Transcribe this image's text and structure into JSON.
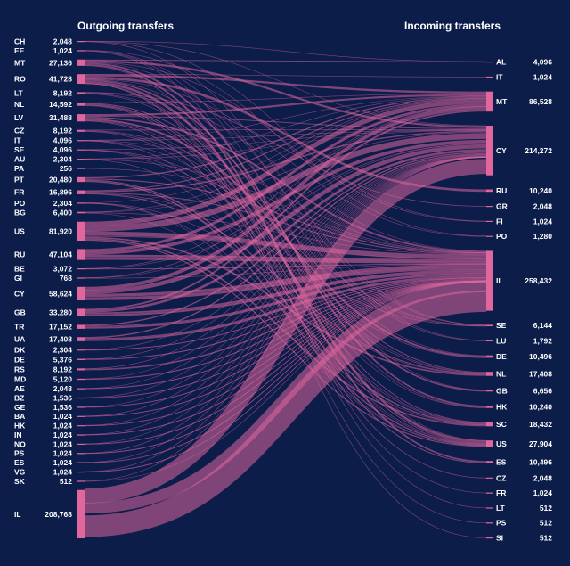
{
  "headers": {
    "outgoing": "Outgoing transfers",
    "incoming": "Incoming transfers"
  },
  "colors": {
    "background": "#0c1d4a",
    "flow": "#e0669e",
    "node": "#e0669e",
    "text": "#ffffff"
  },
  "chart_data": {
    "type": "sankey",
    "sources": [
      {
        "code": "CH",
        "value_label": "2,048",
        "value": 2048
      },
      {
        "code": "EE",
        "value_label": "1,024",
        "value": 1024
      },
      {
        "code": "MT",
        "value_label": "27,136",
        "value": 27136
      },
      {
        "code": "RO",
        "value_label": "41,728",
        "value": 41728
      },
      {
        "code": "LT",
        "value_label": "8,192",
        "value": 8192
      },
      {
        "code": "NL",
        "value_label": "14,592",
        "value": 14592
      },
      {
        "code": "LV",
        "value_label": "31,488",
        "value": 31488
      },
      {
        "code": "CZ",
        "value_label": "8,192",
        "value": 8192
      },
      {
        "code": "IT",
        "value_label": "4,096",
        "value": 4096
      },
      {
        "code": "SE",
        "value_label": "4,096",
        "value": 4096
      },
      {
        "code": "AU",
        "value_label": "2,304",
        "value": 2304
      },
      {
        "code": "PA",
        "value_label": "256",
        "value": 256
      },
      {
        "code": "PT",
        "value_label": "20,480",
        "value": 20480
      },
      {
        "code": "FR",
        "value_label": "16,896",
        "value": 16896
      },
      {
        "code": "PO",
        "value_label": "2,304",
        "value": 2304
      },
      {
        "code": "BG",
        "value_label": "6,400",
        "value": 6400
      },
      {
        "code": "US",
        "value_label": "81,920",
        "value": 81920
      },
      {
        "code": "RU",
        "value_label": "47,104",
        "value": 47104
      },
      {
        "code": "BE",
        "value_label": "3,072",
        "value": 3072
      },
      {
        "code": "GI",
        "value_label": "768",
        "value": 768
      },
      {
        "code": "CY",
        "value_label": "58,624",
        "value": 58624
      },
      {
        "code": "GB",
        "value_label": "33,280",
        "value": 33280
      },
      {
        "code": "TR",
        "value_label": "17,152",
        "value": 17152
      },
      {
        "code": "UA",
        "value_label": "17,408",
        "value": 17408
      },
      {
        "code": "DK",
        "value_label": "2,304",
        "value": 2304
      },
      {
        "code": "DE",
        "value_label": "5,376",
        "value": 5376
      },
      {
        "code": "RS",
        "value_label": "8,192",
        "value": 8192
      },
      {
        "code": "MD",
        "value_label": "5,120",
        "value": 5120
      },
      {
        "code": "AE",
        "value_label": "2,048",
        "value": 2048
      },
      {
        "code": "BZ",
        "value_label": "1,536",
        "value": 1536
      },
      {
        "code": "GE",
        "value_label": "1,536",
        "value": 1536
      },
      {
        "code": "BA",
        "value_label": "1,024",
        "value": 1024
      },
      {
        "code": "HK",
        "value_label": "1,024",
        "value": 1024
      },
      {
        "code": "IN",
        "value_label": "1,024",
        "value": 1024
      },
      {
        "code": "NO",
        "value_label": "1,024",
        "value": 1024
      },
      {
        "code": "PS",
        "value_label": "1,024",
        "value": 1024
      },
      {
        "code": "ES",
        "value_label": "1,024",
        "value": 1024
      },
      {
        "code": "VG",
        "value_label": "1,024",
        "value": 1024
      },
      {
        "code": "SK",
        "value_label": "512",
        "value": 512
      },
      {
        "code": "IL",
        "value_label": "208,768",
        "value": 208768
      }
    ],
    "targets": [
      {
        "code": "AL",
        "value_label": "4,096",
        "value": 4096
      },
      {
        "code": "IT",
        "value_label": "1,024",
        "value": 1024
      },
      {
        "code": "MT",
        "value_label": "86,528",
        "value": 86528
      },
      {
        "code": "CY",
        "value_label": "214,272",
        "value": 214272
      },
      {
        "code": "RU",
        "value_label": "10,240",
        "value": 10240
      },
      {
        "code": "GR",
        "value_label": "2,048",
        "value": 2048
      },
      {
        "code": "FI",
        "value_label": "1,024",
        "value": 1024
      },
      {
        "code": "PO",
        "value_label": "1,280",
        "value": 1280
      },
      {
        "code": "IL",
        "value_label": "258,432",
        "value": 258432
      },
      {
        "code": "SE",
        "value_label": "6,144",
        "value": 6144
      },
      {
        "code": "LU",
        "value_label": "1,792",
        "value": 1792
      },
      {
        "code": "DE",
        "value_label": "10,496",
        "value": 10496
      },
      {
        "code": "NL",
        "value_label": "17,408",
        "value": 17408
      },
      {
        "code": "GB",
        "value_label": "6,656",
        "value": 6656
      },
      {
        "code": "HK",
        "value_label": "10,240",
        "value": 10240
      },
      {
        "code": "SC",
        "value_label": "18,432",
        "value": 18432
      },
      {
        "code": "US",
        "value_label": "27,904",
        "value": 27904
      },
      {
        "code": "ES",
        "value_label": "10,496",
        "value": 10496
      },
      {
        "code": "CZ",
        "value_label": "2,048",
        "value": 2048
      },
      {
        "code": "FR",
        "value_label": "1,024",
        "value": 1024
      },
      {
        "code": "LT",
        "value_label": "512",
        "value": 512
      },
      {
        "code": "PS",
        "value_label": "512",
        "value": 512
      },
      {
        "code": "SI",
        "value_label": "512",
        "value": 512
      }
    ]
  }
}
